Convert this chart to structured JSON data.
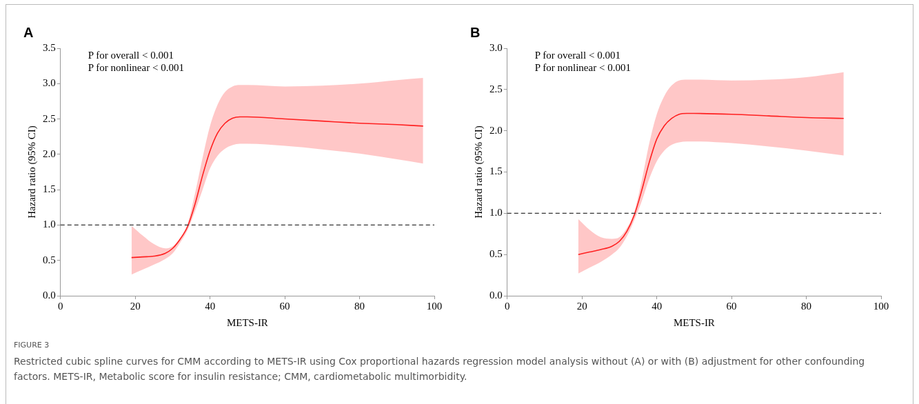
{
  "chart_data": [
    {
      "type": "line",
      "title": "A",
      "xlabel": "METS-IR",
      "ylabel": "Hazard ratio (95% CI)",
      "xlim": [
        0,
        100
      ],
      "xticks": [
        0,
        20,
        40,
        60,
        80,
        100
      ],
      "ylim": [
        0,
        3.5
      ],
      "yticks": [
        {
          "value": 0,
          "label": "0.0"
        },
        {
          "value": 0.5,
          "label": "0.5"
        },
        {
          "value": 1,
          "label": "1.0"
        },
        {
          "value": 1.5,
          "label": "1.5"
        },
        {
          "value": 2,
          "label": "2.0"
        },
        {
          "value": 2.5,
          "label": "2.5"
        },
        {
          "value": 3,
          "label": "3.0"
        },
        {
          "value": 3.5,
          "label": "3.5"
        }
      ],
      "grid": false,
      "legend": false,
      "line_style": "solid",
      "marker": "none",
      "x": [
        19,
        22,
        25,
        28,
        30,
        32,
        34,
        36,
        38,
        40,
        42,
        44,
        46,
        48,
        50,
        60,
        70,
        80,
        90,
        97
      ],
      "series": [
        {
          "color": "#ff2020",
          "values": [
            0.54,
            0.55,
            0.56,
            0.6,
            0.67,
            0.8,
            0.98,
            1.3,
            1.7,
            2.05,
            2.3,
            2.44,
            2.51,
            2.53,
            2.53,
            2.5,
            2.47,
            2.44,
            2.42,
            2.4
          ],
          "lower": [
            0.3,
            0.37,
            0.44,
            0.52,
            0.6,
            0.75,
            0.93,
            1.2,
            1.5,
            1.8,
            1.98,
            2.08,
            2.13,
            2.15,
            2.15,
            2.12,
            2.07,
            2.01,
            1.93,
            1.87
          ],
          "upper": [
            0.99,
            0.85,
            0.73,
            0.67,
            0.7,
            0.82,
            1.02,
            1.45,
            1.95,
            2.4,
            2.7,
            2.88,
            2.96,
            2.98,
            2.98,
            2.96,
            2.97,
            3.0,
            3.05,
            3.08
          ]
        }
      ],
      "ref_lines": [
        {
          "axis": "y",
          "value": 1,
          "color": "#333333",
          "line_style": "dashed"
        }
      ],
      "annotations": [
        "P for overall < 0.001",
        "P for nonlinear < 0.001",
        "FIGURE 3",
        "Restricted cubic spline curves for CMM according to METS-IR using Cox proportional hazards regression model analysis without (A) or with (B) adjustment for other confounding factors. METS-IR, Metabolic score for insulin resistance; CMM, cardiometabolic multimorbidity."
      ]
    },
    {
      "type": "line",
      "title": "B",
      "xlabel": "METS-IR",
      "ylabel": "Hazard ratio (95% CI)",
      "xlim": [
        0,
        100
      ],
      "xticks": [
        0,
        20,
        40,
        60,
        80,
        100
      ],
      "ylim": [
        0,
        3
      ],
      "yticks": [
        {
          "value": 0,
          "label": "0.0"
        },
        {
          "value": 0.5,
          "label": "0.5"
        },
        {
          "value": 1,
          "label": "1.0"
        },
        {
          "value": 1.5,
          "label": "1.5"
        },
        {
          "value": 2,
          "label": "2.0"
        },
        {
          "value": 2.5,
          "label": "2.5"
        },
        {
          "value": 3,
          "label": "3.0"
        }
      ],
      "grid": false,
      "legend": false,
      "line_style": "solid",
      "marker": "none",
      "x": [
        19,
        22,
        25,
        28,
        30,
        32,
        34,
        36,
        38,
        40,
        42,
        44,
        46,
        48,
        50,
        60,
        70,
        80,
        90
      ],
      "series": [
        {
          "color": "#ff2020",
          "values": [
            0.5,
            0.53,
            0.56,
            0.6,
            0.66,
            0.78,
            0.98,
            1.28,
            1.62,
            1.9,
            2.06,
            2.15,
            2.2,
            2.21,
            2.21,
            2.2,
            2.18,
            2.16,
            2.15
          ],
          "lower": [
            0.27,
            0.34,
            0.41,
            0.5,
            0.58,
            0.72,
            0.92,
            1.15,
            1.42,
            1.63,
            1.76,
            1.83,
            1.86,
            1.87,
            1.87,
            1.85,
            1.81,
            1.76,
            1.7
          ],
          "upper": [
            0.93,
            0.8,
            0.71,
            0.69,
            0.71,
            0.82,
            1.02,
            1.4,
            1.85,
            2.2,
            2.42,
            2.55,
            2.61,
            2.62,
            2.62,
            2.61,
            2.62,
            2.65,
            2.71
          ]
        }
      ],
      "ref_lines": [
        {
          "axis": "y",
          "value": 1,
          "color": "#333333",
          "line_style": "dashed"
        }
      ],
      "annotations": [
        "P for overall < 0.001",
        "P for nonlinear < 0.001"
      ]
    }
  ]
}
